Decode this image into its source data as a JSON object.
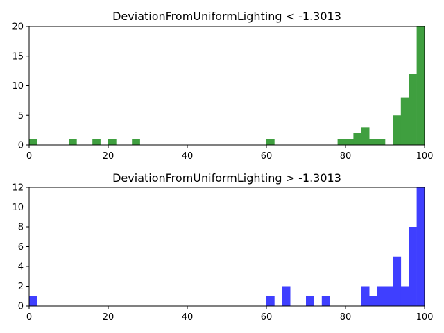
{
  "chart_data": [
    {
      "type": "bar",
      "title": "DeviationFromUniformLighting < -1.3013",
      "xlabel": "",
      "ylabel": "",
      "xlim": [
        0,
        100
      ],
      "ylim": [
        0,
        20
      ],
      "bin_width": 2,
      "color": "#3f9f3f",
      "x_ticks": [
        "0",
        "20",
        "40",
        "60",
        "80",
        "100"
      ],
      "y_ticks": [
        "0",
        "5",
        "10",
        "15",
        "20"
      ],
      "bins": [
        {
          "x": 0,
          "value": 1
        },
        {
          "x": 10,
          "value": 1
        },
        {
          "x": 16,
          "value": 1
        },
        {
          "x": 20,
          "value": 1
        },
        {
          "x": 26,
          "value": 1
        },
        {
          "x": 60,
          "value": 1
        },
        {
          "x": 78,
          "value": 1
        },
        {
          "x": 80,
          "value": 1
        },
        {
          "x": 82,
          "value": 2
        },
        {
          "x": 84,
          "value": 3
        },
        {
          "x": 86,
          "value": 1
        },
        {
          "x": 88,
          "value": 1
        },
        {
          "x": 92,
          "value": 5
        },
        {
          "x": 94,
          "value": 8
        },
        {
          "x": 96,
          "value": 12
        },
        {
          "x": 98,
          "value": 20
        }
      ]
    },
    {
      "type": "bar",
      "title": "DeviationFromUniformLighting > -1.3013",
      "xlabel": "",
      "ylabel": "",
      "xlim": [
        0,
        100
      ],
      "ylim": [
        0,
        12
      ],
      "bin_width": 2,
      "color": "#3f3fff",
      "x_ticks": [
        "0",
        "20",
        "40",
        "60",
        "80",
        "100"
      ],
      "y_ticks": [
        "0",
        "2",
        "4",
        "6",
        "8",
        "10",
        "12"
      ],
      "bins": [
        {
          "x": 0,
          "value": 1
        },
        {
          "x": 60,
          "value": 1
        },
        {
          "x": 64,
          "value": 2
        },
        {
          "x": 70,
          "value": 1
        },
        {
          "x": 74,
          "value": 1
        },
        {
          "x": 84,
          "value": 2
        },
        {
          "x": 86,
          "value": 1
        },
        {
          "x": 88,
          "value": 2
        },
        {
          "x": 90,
          "value": 2
        },
        {
          "x": 92,
          "value": 5
        },
        {
          "x": 94,
          "value": 2
        },
        {
          "x": 96,
          "value": 8
        },
        {
          "x": 98,
          "value": 12
        }
      ]
    }
  ]
}
